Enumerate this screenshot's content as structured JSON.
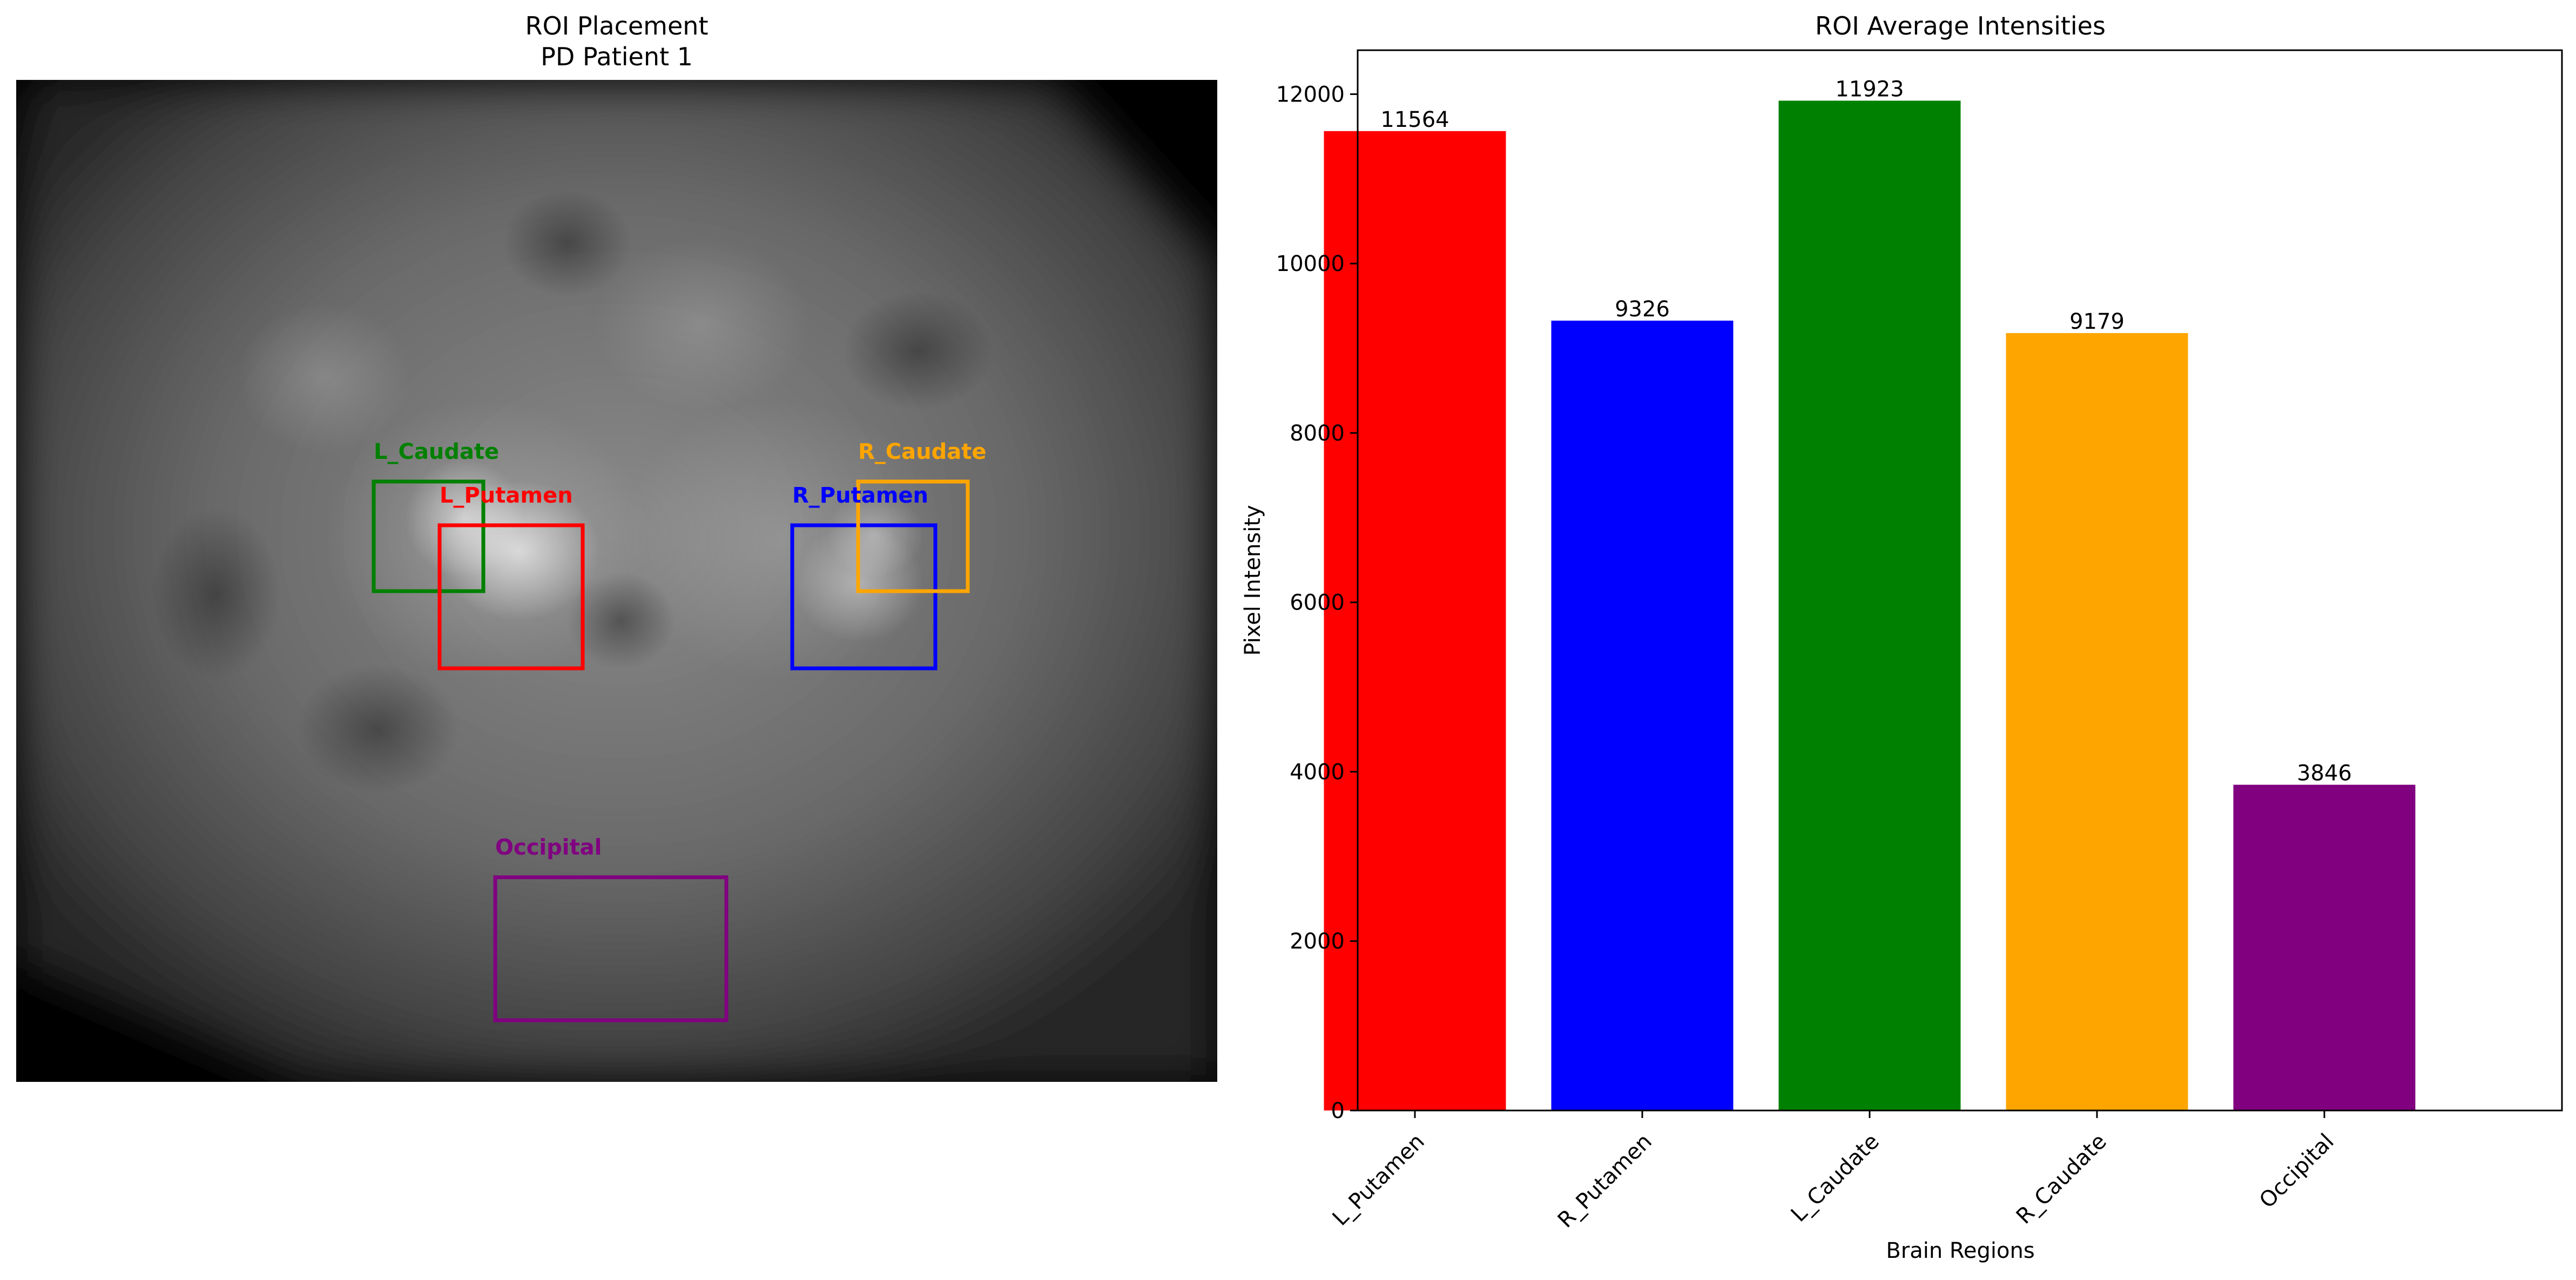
{
  "left_panel": {
    "title_line1": "ROI Placement",
    "title_line2": "PD Patient 1",
    "rois": [
      {
        "label": "L_Caudate",
        "color": "#008000"
      },
      {
        "label": "L_Putamen",
        "color": "#ff0000"
      },
      {
        "label": "R_Putamen",
        "color": "#0000ff"
      },
      {
        "label": "R_Caudate",
        "color": "#ffa500"
      },
      {
        "label": "Occipital",
        "color": "#800080"
      }
    ]
  },
  "chart_data": {
    "type": "bar",
    "title": "ROI Average Intensities",
    "xlabel": "Brain Regions",
    "ylabel": "Pixel Intensity",
    "categories": [
      "L_Putamen",
      "R_Putamen",
      "L_Caudate",
      "R_Caudate",
      "Occipital"
    ],
    "values": [
      11564,
      9326,
      11923,
      9179,
      3846
    ],
    "value_labels": [
      "11564",
      "9326",
      "11923",
      "9179",
      "3846"
    ],
    "colors": [
      "#ff0000",
      "#0000ff",
      "#008000",
      "#ffa500",
      "#800080"
    ],
    "ylim": [
      0,
      12519
    ],
    "yticks": [
      0,
      2000,
      4000,
      6000,
      8000,
      10000,
      12000
    ],
    "ytick_labels": [
      "0",
      "2000",
      "4000",
      "6000",
      "8000",
      "10000",
      "12000"
    ],
    "grid": false,
    "legend": "none"
  }
}
